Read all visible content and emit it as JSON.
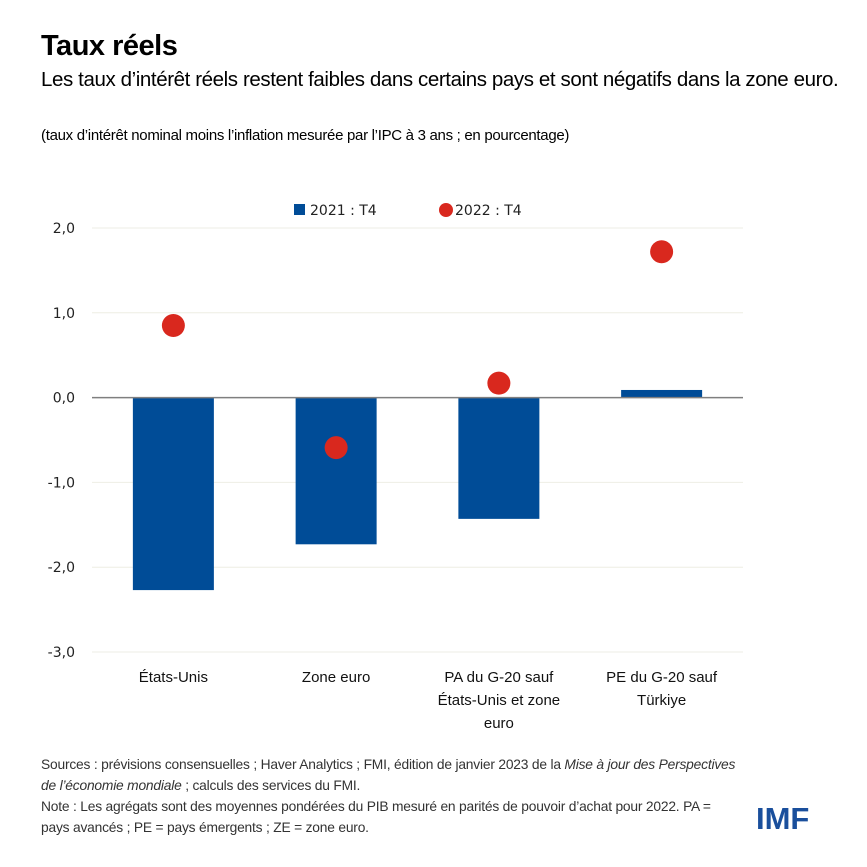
{
  "header": {
    "title": "Taux réels",
    "subtitle": "Les taux d’intérêt réels restent faibles dans certains pays et sont négatifs dans la zone euro.",
    "unit_note": "(taux d’intérêt nominal moins l’inflation mesurée par l’IPC à 3 ans ; en pourcentage)"
  },
  "colors": {
    "bar": "#004C97",
    "dot": "#D9281E",
    "grid": "#EEEEE4",
    "zero_line": "#7F7F7F",
    "logo": "#1a4f9c"
  },
  "chart_data": {
    "type": "bar",
    "title": "Taux réels",
    "xlabel": "",
    "ylabel": "",
    "ylim": [
      -3.0,
      2.0
    ],
    "yticks": [
      2.0,
      1.0,
      0.0,
      -1.0,
      -2.0,
      -3.0
    ],
    "ytick_labels": [
      "2,0",
      "1,0",
      "0,0",
      "-1,0",
      "-2,0",
      "-3,0"
    ],
    "grid": true,
    "legend_position": "top-center",
    "categories": [
      [
        "États-Unis"
      ],
      [
        "Zone euro"
      ],
      [
        "PA du G-20 sauf",
        "États-Unis et zone",
        "euro"
      ],
      [
        "PE du G-20 sauf",
        "Türkiye"
      ]
    ],
    "series": [
      {
        "name": "2021 : T4",
        "kind": "bar",
        "values": [
          -2.27,
          -1.73,
          -1.43,
          0.09
        ]
      },
      {
        "name": "2022 : T4",
        "kind": "dot",
        "values": [
          0.85,
          -0.59,
          0.17,
          1.72
        ]
      }
    ]
  },
  "footer": {
    "sources_prefix": "Sources : prévisions consensuelles ; Haver Analytics ; FMI, édition de janvier 2023 de la ",
    "sources_italic": "Mise à jour des Perspectives de l’économie mondiale",
    "sources_suffix": " ; calculs des services du FMI.",
    "note": "Note : Les agrégats sont des moyennes pondérées du PIB mesuré en parités de pouvoir d’achat pour 2022. PA = pays avancés ; PE = pays émergents ; ZE = zone euro.",
    "logo": "IMF"
  }
}
